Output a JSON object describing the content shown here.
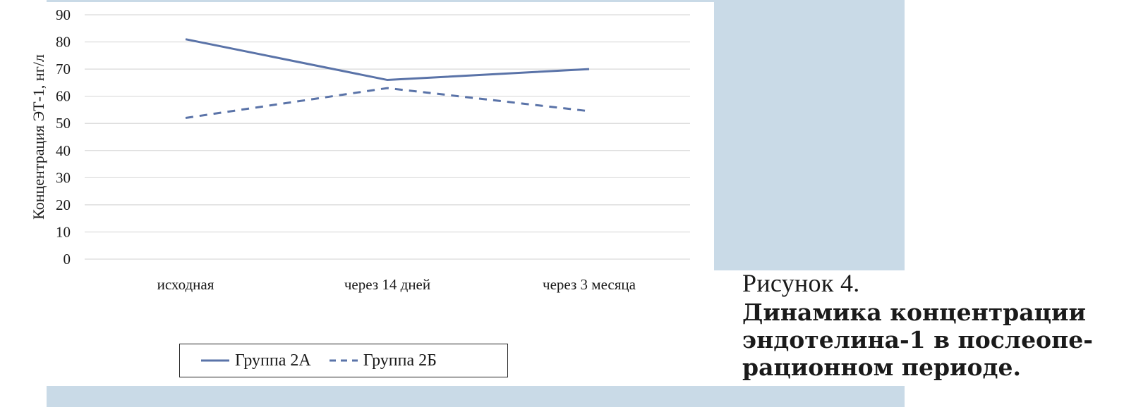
{
  "chart_data": {
    "type": "line",
    "categories": [
      "исходная",
      "через 14 дней",
      "через 3 месяца"
    ],
    "series": [
      {
        "name": "Группа 2А",
        "values": [
          81,
          66,
          70
        ],
        "style": "solid",
        "color": "#5a73a8"
      },
      {
        "name": "Группа 2Б",
        "values": [
          52,
          63,
          54.5
        ],
        "style": "dashed",
        "color": "#5a73a8"
      }
    ],
    "ylabel": "Концентрация ЭТ-1, нг/л",
    "ylim": [
      0,
      90
    ],
    "yticks": [
      0,
      10,
      20,
      30,
      40,
      50,
      60,
      70,
      80,
      90
    ],
    "grid": true,
    "legend_position": "bottom"
  },
  "caption": {
    "label": "Рисунок 4.",
    "title": "Динамика концентрации\nэндотелина-1 в послеопе-\nрационном периоде."
  },
  "colors": {
    "band": "#c9dae7",
    "grid": "#d9d9d9",
    "series": "#5a73a8"
  }
}
